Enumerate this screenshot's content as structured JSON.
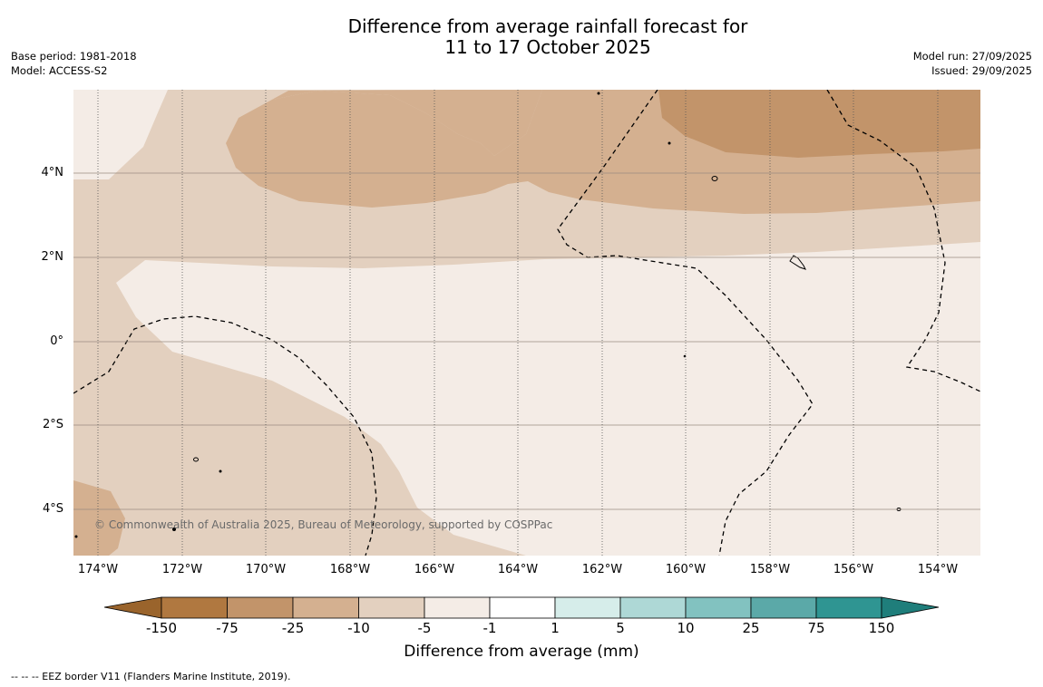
{
  "title_line1": "Difference from average rainfall forecast for",
  "title_line2": "11 to 17 October 2025",
  "meta_left": {
    "base_period": "Base period: 1981-2018",
    "model": "Model: ACCESS-S2"
  },
  "meta_right": {
    "model_run": "Model run: 27/09/2025",
    "issued": "Issued: 29/09/2025"
  },
  "map": {
    "latitude_labels": [
      "4°N",
      "2°N",
      "0°",
      "2°S",
      "4°S"
    ],
    "longitude_labels": [
      "174°W",
      "172°W",
      "170°W",
      "168°W",
      "166°W",
      "164°W",
      "162°W",
      "160°W",
      "158°W",
      "156°W",
      "154°W"
    ],
    "copyright": "© Commonwealth of Australia 2025, Bureau of Meteorology, supported by COSPPac"
  },
  "colorbar": {
    "title": "Difference from average (mm)",
    "tick_labels": [
      "-150",
      "-75",
      "-25",
      "-10",
      "-5",
      "-1",
      "1",
      "5",
      "10",
      "25",
      "75",
      "150"
    ],
    "colors": [
      "#9a642c",
      "#b07840",
      "#c2946a",
      "#d4b090",
      "#e3d0bf",
      "#f4ece6",
      "#ffffff",
      "#d6edea",
      "#aed8d6",
      "#82c2c0",
      "#5ba9a8",
      "#2f9592",
      "#1f7e7b"
    ]
  },
  "footnote": "--  --  -- EEZ border V11 (Flanders Marine Institute, 2019)."
}
